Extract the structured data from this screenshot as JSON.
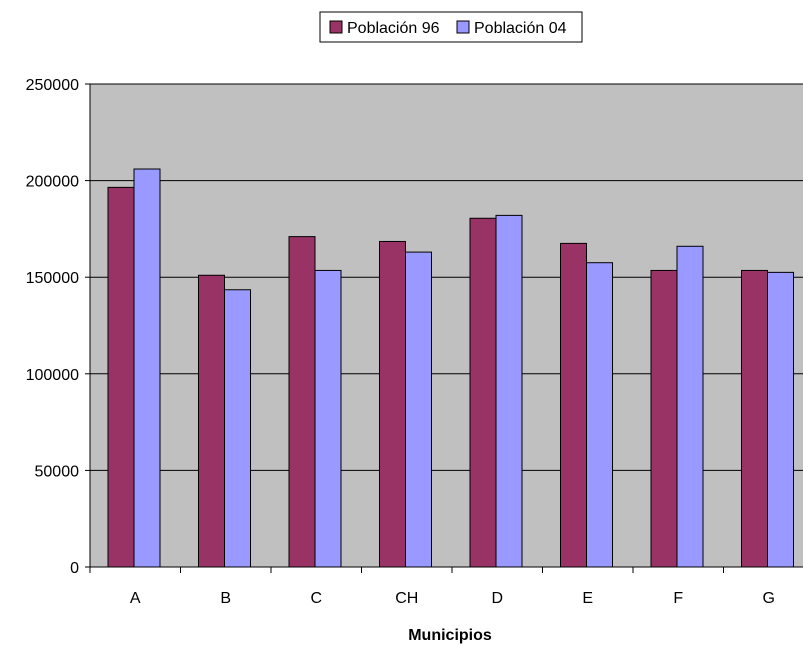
{
  "chart_data": {
    "type": "bar",
    "title": "",
    "xlabel": "Municipios",
    "ylabel": "",
    "categories": [
      "A",
      "B",
      "C",
      "CH",
      "D",
      "E",
      "F",
      "G"
    ],
    "series": [
      {
        "name": "Población 96",
        "color": "#993366",
        "values": [
          196500,
          151000,
          171000,
          168500,
          180500,
          167500,
          153500,
          153500
        ]
      },
      {
        "name": "Población 04",
        "color": "#9999ff",
        "values": [
          206000,
          143500,
          153500,
          163000,
          182000,
          157500,
          166000,
          152500
        ]
      }
    ],
    "ylim": [
      0,
      250000
    ],
    "yticks": [
      "0",
      "50000",
      "100000",
      "150000",
      "200000",
      "250000"
    ],
    "grid": true,
    "legend_position": "top",
    "plot_background": "#c0c0c0"
  }
}
